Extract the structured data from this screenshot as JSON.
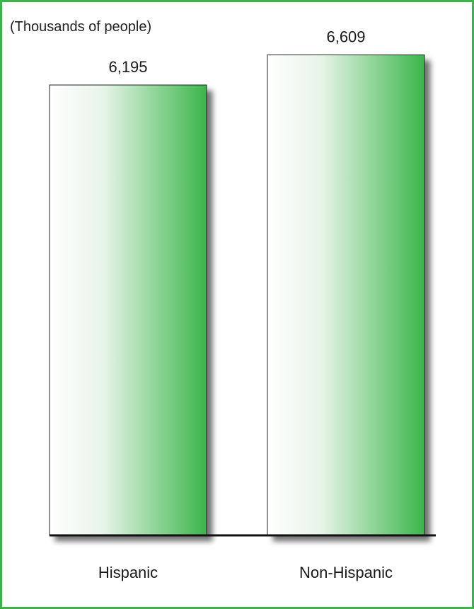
{
  "chart_data": {
    "type": "bar",
    "unit_label": "(Thousands of people)",
    "categories": [
      "Hispanic",
      "Non-Hispanic"
    ],
    "values": [
      6195,
      6609
    ],
    "value_labels": [
      "6,195",
      "6,609"
    ],
    "ylim": [
      0,
      7000
    ],
    "grid": false,
    "legend": "none",
    "colors": {
      "frame": "#3cb44a",
      "bar_light": "#ffffff",
      "bar_dark": "#3ab54a",
      "baseline": "#111111",
      "shadow": "#555555"
    }
  }
}
